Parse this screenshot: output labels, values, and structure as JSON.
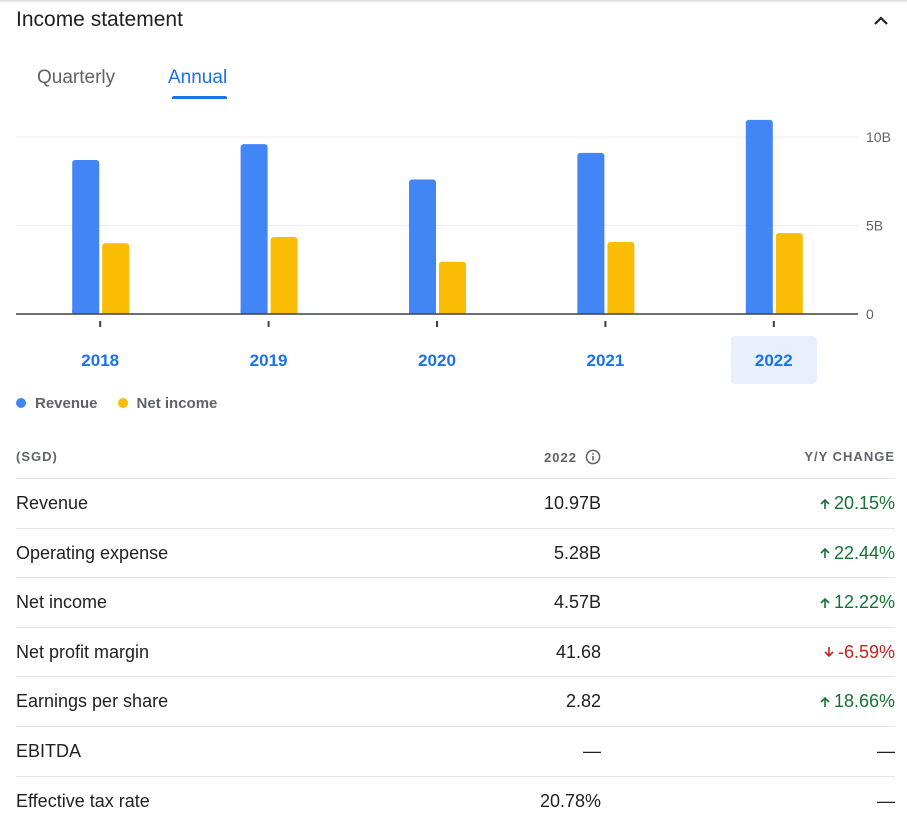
{
  "header": {
    "title": "Income statement"
  },
  "tabs": [
    {
      "label": "Quarterly",
      "active": false
    },
    {
      "label": "Annual",
      "active": true
    }
  ],
  "colors": {
    "revenue": "#4285f4",
    "net_income": "#fbbc04",
    "accent": "#1a73e8",
    "positive": "#137333",
    "negative": "#c5221f",
    "selected_year_bg": "#e8f0fe"
  },
  "chart_data": {
    "type": "bar",
    "categories": [
      "2018",
      "2019",
      "2020",
      "2021",
      "2022"
    ],
    "selected_category": "2022",
    "series": [
      {
        "name": "Revenue",
        "color": "#4285f4",
        "values": [
          8.7,
          9.6,
          7.6,
          9.1,
          10.97
        ]
      },
      {
        "name": "Net income",
        "color": "#fbbc04",
        "values": [
          4.0,
          4.35,
          2.95,
          4.07,
          4.57
        ]
      }
    ],
    "y_ticks": [
      {
        "value": 0,
        "label": "0"
      },
      {
        "value": 5,
        "label": "5B"
      },
      {
        "value": 10,
        "label": "10B"
      }
    ],
    "ylim": [
      0,
      10
    ],
    "y_unit": "billions",
    "grid": true,
    "legend_position": "bottom-left"
  },
  "legend": [
    {
      "label": "Revenue",
      "color": "#4285f4"
    },
    {
      "label": "Net income",
      "color": "#fbbc04"
    }
  ],
  "table": {
    "headers": {
      "metric": "(SGD)",
      "year": "2022",
      "change": "Y/Y CHANGE"
    },
    "rows": [
      {
        "label": "Revenue",
        "value": "10.97B",
        "change": "20.15%",
        "direction": "up"
      },
      {
        "label": "Operating expense",
        "value": "5.28B",
        "change": "22.44%",
        "direction": "up"
      },
      {
        "label": "Net income",
        "value": "4.57B",
        "change": "12.22%",
        "direction": "up"
      },
      {
        "label": "Net profit margin",
        "value": "41.68",
        "change": "-6.59%",
        "direction": "down"
      },
      {
        "label": "Earnings per share",
        "value": "2.82",
        "change": "18.66%",
        "direction": "up"
      },
      {
        "label": "EBITDA",
        "value": "—",
        "change": "—",
        "direction": "none"
      },
      {
        "label": "Effective tax rate",
        "value": "20.78%",
        "change": "—",
        "direction": "none"
      }
    ]
  }
}
